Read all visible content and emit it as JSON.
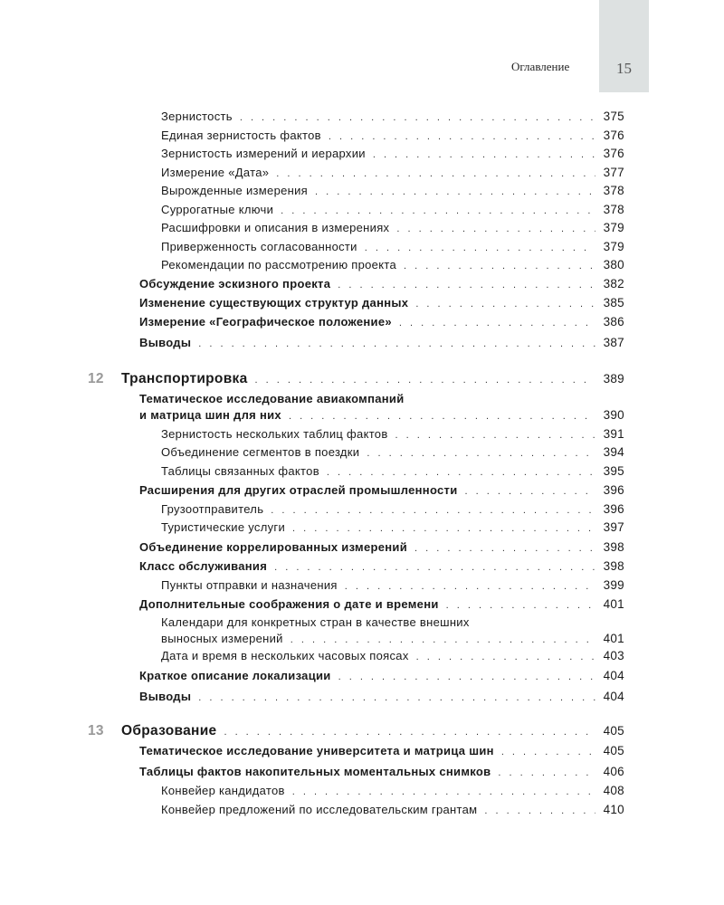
{
  "header": {
    "section_title": "Оглавление",
    "page_number": "15"
  },
  "entries": [
    {
      "level": 2,
      "title": "Зернистость",
      "page": "375"
    },
    {
      "level": 2,
      "title": "Единая зернистость фактов",
      "page": "376"
    },
    {
      "level": 2,
      "title": "Зернистость измерений и иерархии",
      "page": "376"
    },
    {
      "level": 2,
      "title": "Измерение «Дата»",
      "page": "377"
    },
    {
      "level": 2,
      "title": "Вырожденные измерения",
      "page": "378"
    },
    {
      "level": 2,
      "title": "Суррогатные ключи",
      "page": "378"
    },
    {
      "level": 2,
      "title": "Расшифровки и описания в измерениях",
      "page": "379"
    },
    {
      "level": 2,
      "title": "Приверженность согласованности",
      "page": "379"
    },
    {
      "level": 2,
      "title": "Рекомендации по рассмотрению проекта",
      "page": "380"
    },
    {
      "level": 1,
      "title": "Обсуждение эскизного проекта",
      "page": "382"
    },
    {
      "level": 1,
      "title": "Изменение существующих структур данных",
      "page": "385"
    },
    {
      "level": 1,
      "title": "Измерение «Географическое положение»",
      "page": "386"
    },
    {
      "level": 1,
      "title": "Выводы",
      "page": "387"
    },
    {
      "level": 0,
      "number": "12",
      "title": "Транспортировка",
      "page": "389"
    },
    {
      "level": 1,
      "title_line1": "Тематическое исследование авиакомпаний",
      "title": "и матрица шин для них",
      "page": "390"
    },
    {
      "level": 2,
      "title": "Зернистость нескольких таблиц фактов",
      "page": "391"
    },
    {
      "level": 2,
      "title": "Объединение сегментов в поездки",
      "page": "394"
    },
    {
      "level": 2,
      "title": "Таблицы связанных фактов",
      "page": "395"
    },
    {
      "level": 1,
      "title": "Расширения для других отраслей промышленности",
      "page": "396"
    },
    {
      "level": 2,
      "title": "Грузоотправитель",
      "page": "396"
    },
    {
      "level": 2,
      "title": "Туристические услуги",
      "page": "397"
    },
    {
      "level": 1,
      "title": "Объединение коррелированных измерений",
      "page": "398"
    },
    {
      "level": 1,
      "title": "Класс обслуживания",
      "page": "398"
    },
    {
      "level": 2,
      "title": "Пункты отправки и назначения",
      "page": "399"
    },
    {
      "level": 1,
      "title": "Дополнительные соображения о дате и времени",
      "page": "401"
    },
    {
      "level": 2,
      "title_line1": "Календари для конкретных стран в качестве внешних",
      "title": "выносных измерений",
      "page": "401"
    },
    {
      "level": 2,
      "title": "Дата и время в нескольких часовых поясах",
      "page": "403"
    },
    {
      "level": 1,
      "title": "Краткое описание локализации",
      "page": "404"
    },
    {
      "level": 1,
      "title": "Выводы",
      "page": "404"
    },
    {
      "level": 0,
      "number": "13",
      "title": "Образование",
      "page": "405"
    },
    {
      "level": 1,
      "title": "Тематическое исследование университета и матрица шин",
      "page": "405"
    },
    {
      "level": 1,
      "title": "Таблицы фактов накопительных моментальных снимков",
      "page": "406"
    },
    {
      "level": 2,
      "title": "Конвейер кандидатов",
      "page": "408"
    },
    {
      "level": 2,
      "title": "Конвейер предложений по исследовательским грантам",
      "page": "410"
    }
  ]
}
